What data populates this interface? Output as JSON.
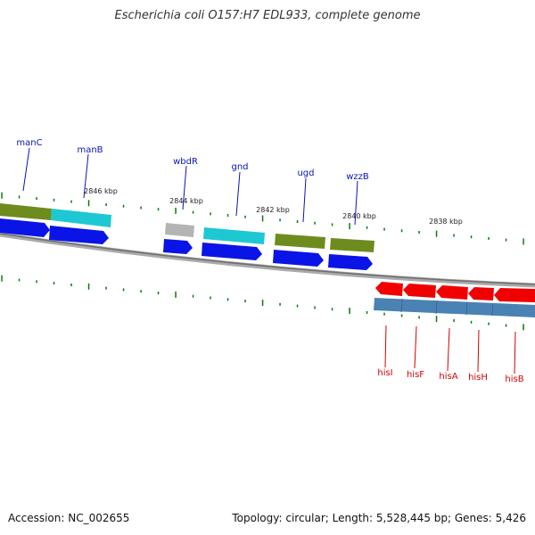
{
  "title": "Escherichia coli O157:H7 EDL933, complete genome",
  "footer": {
    "accession": "Accession: NC_002655",
    "stats": "Topology: circular; Length: 5,528,445 bp; Genes: 5,426"
  },
  "colors": {
    "backbone": "#8a8a8a",
    "forward_label": "#0a14b4",
    "reverse_label": "#d40000",
    "tick": "#0b7a0b",
    "olive": "#6e8c1e",
    "cyan": "#1ec8d2",
    "gray": "#b4b4b4",
    "blue": "#0a14e6",
    "red": "#f00000",
    "steel": "#4a82b4"
  },
  "kbp_labels": [
    "2846 kbp",
    "2844 kbp",
    "2842 kbp",
    "2840 kbp",
    "2838 kbp"
  ],
  "forward_genes": [
    "manC",
    "manB",
    "wbdR",
    "gnd",
    "ugd",
    "wzzB"
  ],
  "reverse_genes": [
    "hisI",
    "hisF",
    "hisA",
    "hisH",
    "hisB"
  ]
}
